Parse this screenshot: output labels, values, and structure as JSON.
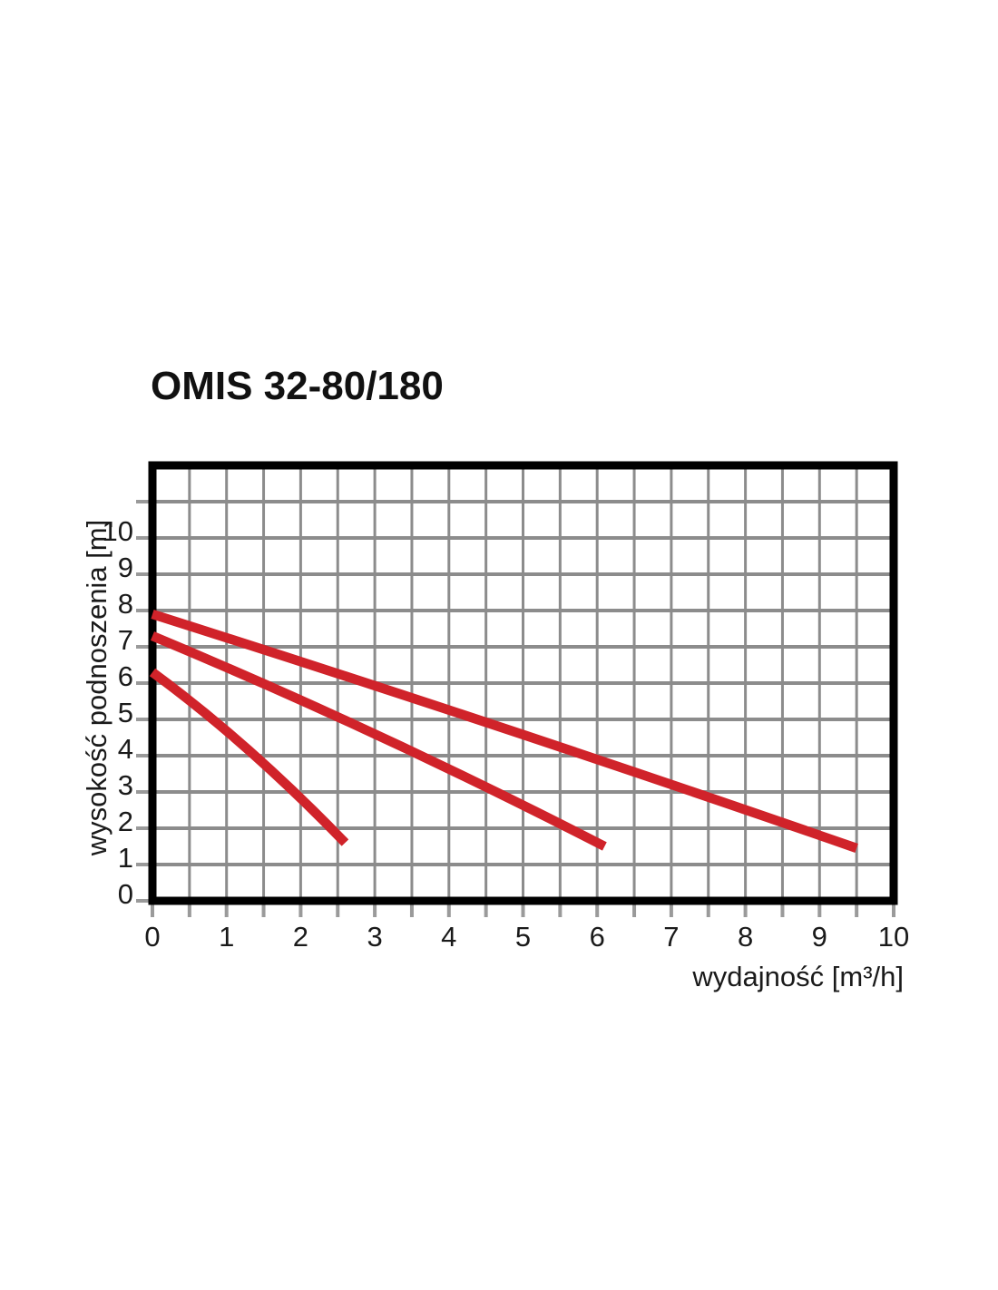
{
  "page": {
    "background": "#ffffff"
  },
  "chart_data": {
    "type": "line",
    "title": "OMIS 32-80/180",
    "xlabel": "wydajność [m³/h]",
    "ylabel": "wysokość podnoszenia [m]",
    "xlim": [
      0,
      10
    ],
    "ylim": [
      0,
      12
    ],
    "xticks": [
      0,
      1,
      2,
      3,
      4,
      5,
      6,
      7,
      8,
      9,
      10
    ],
    "yticks": [
      0,
      1,
      2,
      3,
      4,
      5,
      6,
      7,
      8,
      9,
      10
    ],
    "grid": {
      "on": true,
      "x_step": 0.5,
      "y_step": 1,
      "color": "#8c8c8c"
    },
    "legend": {
      "show": false
    },
    "axis_border_color": "#000000",
    "curve_color": "#d0232a",
    "series": [
      {
        "name": "curve-speed-3",
        "color": "#d0232a",
        "points": [
          [
            0,
            7.9
          ],
          [
            4.75,
            4.75
          ],
          [
            9.5,
            1.45
          ]
        ]
      },
      {
        "name": "curve-speed-2",
        "color": "#d0232a",
        "points": [
          [
            0,
            7.3
          ],
          [
            3.05,
            4.55
          ],
          [
            6.1,
            1.5
          ]
        ]
      },
      {
        "name": "curve-speed-1",
        "color": "#d0232a",
        "points": [
          [
            0,
            6.3
          ],
          [
            1.3,
            4.15
          ],
          [
            2.6,
            1.6
          ]
        ]
      }
    ]
  }
}
